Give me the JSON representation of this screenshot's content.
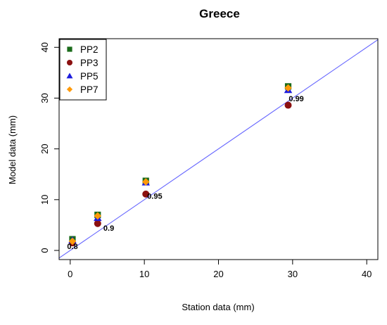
{
  "chart_data": {
    "type": "scatter",
    "title": "Greece",
    "xlabel": "Station data (mm)",
    "ylabel": "Model data (mm)",
    "xlim": [
      -1.5,
      41.5
    ],
    "ylim": [
      -1.8,
      41.7
    ],
    "x_ticks": [
      0,
      10,
      20,
      30,
      40
    ],
    "y_ticks": [
      0,
      10,
      20,
      30,
      40
    ],
    "grid": false,
    "legend_position": "top-left",
    "reference_line": {
      "slope": 1,
      "intercept": 0,
      "color": "#6666ff"
    },
    "series": [
      {
        "name": "PP2",
        "marker": "square",
        "color": "#1a6b1a",
        "points": [
          [
            0.3,
            2.2
          ],
          [
            3.7,
            7.0
          ],
          [
            10.2,
            13.7
          ],
          [
            29.4,
            32.3
          ]
        ]
      },
      {
        "name": "PP3",
        "marker": "circle",
        "color": "#8b1010",
        "points": [
          [
            0.3,
            1.5
          ],
          [
            3.7,
            5.3
          ],
          [
            10.2,
            11.1
          ],
          [
            29.4,
            28.6
          ]
        ]
      },
      {
        "name": "PP5",
        "marker": "triangle",
        "color": "#1c1cdd",
        "points": [
          [
            0.3,
            2.0
          ],
          [
            3.7,
            6.4
          ],
          [
            10.2,
            13.4
          ],
          [
            29.4,
            31.6
          ]
        ]
      },
      {
        "name": "PP7",
        "marker": "diamond",
        "color": "#ff9a0a",
        "points": [
          [
            0.3,
            1.8
          ],
          [
            3.7,
            6.8
          ],
          [
            10.2,
            13.5
          ],
          [
            29.4,
            32.0
          ]
        ]
      }
    ],
    "annotations": [
      {
        "text": "0.8",
        "x": 0.3,
        "y": 0.3
      },
      {
        "text": "0.9",
        "x": 5.2,
        "y": 3.9
      },
      {
        "text": "0.95",
        "x": 11.4,
        "y": 10.2
      },
      {
        "text": "0.99",
        "x": 30.5,
        "y": 29.4
      }
    ]
  }
}
